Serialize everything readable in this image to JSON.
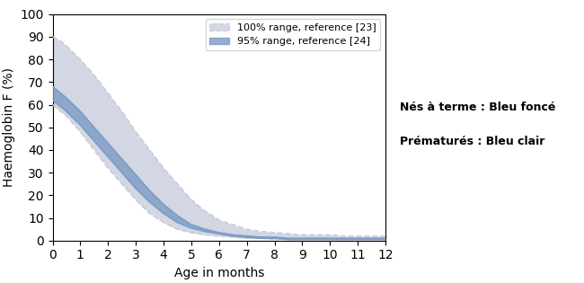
{
  "chart_data": {
    "type": "range",
    "xlabel": "Age in months",
    "ylabel": "Haemoglobin F (%)",
    "x": [
      0,
      0.3,
      0.5,
      1,
      1.5,
      2,
      2.5,
      3,
      3.5,
      4,
      4.5,
      5,
      5.5,
      6,
      6.5,
      7,
      7.5,
      8,
      8.5,
      9,
      9.5,
      10,
      10.5,
      11,
      11.5,
      12
    ],
    "series": [
      {
        "name": "100% range, reference [23]",
        "color": "#C8CCDC",
        "line_style": "dashed",
        "upper": [
          90,
          88,
          86,
          80,
          73,
          65,
          57,
          48,
          40,
          32,
          25,
          18,
          13,
          9,
          7,
          5,
          4,
          3.5,
          3,
          2.5,
          2.5,
          2.5,
          2,
          2,
          2,
          2
        ],
        "lower": [
          60,
          57,
          55,
          48,
          40,
          32,
          25,
          18,
          12,
          8,
          5,
          3.5,
          2.5,
          2,
          1.5,
          1,
          1,
          0.5,
          0.5,
          0.5,
          0.5,
          0.5,
          0.5,
          0.5,
          0.5,
          0.5
        ]
      },
      {
        "name": "95% range, reference [24]",
        "color": "#7B9CC4",
        "line_style": "solid",
        "upper": [
          68,
          65,
          63,
          57,
          50,
          43,
          36,
          29,
          22,
          16,
          11,
          7,
          5,
          3.5,
          2.5,
          2,
          1.5,
          1.5,
          1,
          1,
          1,
          1,
          1,
          1,
          1,
          1
        ],
        "lower": [
          62,
          59,
          57,
          51,
          44,
          37,
          30,
          23,
          17,
          12,
          8,
          5.5,
          4,
          3,
          2,
          1.5,
          1,
          1,
          0.5,
          0.5,
          0.5,
          0.5,
          0.5,
          0.5,
          0.5,
          0.5
        ]
      }
    ],
    "xlim": [
      0,
      12
    ],
    "ylim": [
      0,
      100
    ],
    "xticks": [
      0,
      1,
      2,
      3,
      4,
      5,
      6,
      7,
      8,
      9,
      10,
      11,
      12
    ],
    "yticks": [
      0,
      10,
      20,
      30,
      40,
      50,
      60,
      70,
      80,
      90,
      100
    ],
    "legend": "upper right",
    "annotations": [
      "Nés à terme : Bleu foncé",
      "Prématurés : Bleu clair"
    ]
  }
}
